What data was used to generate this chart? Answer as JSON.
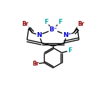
{
  "bg_color": "#ffffff",
  "line_color": "#000000",
  "atom_colors": {
    "Br": "#8B0000",
    "N": "#0000CC",
    "B": "#0000CC",
    "F": "#00AAAA",
    "C": "#000000"
  },
  "bond_lw": 1.0,
  "font_size": 6.5,
  "xlim": [
    0.0,
    1.0
  ],
  "ylim": [
    0.05,
    0.95
  ]
}
